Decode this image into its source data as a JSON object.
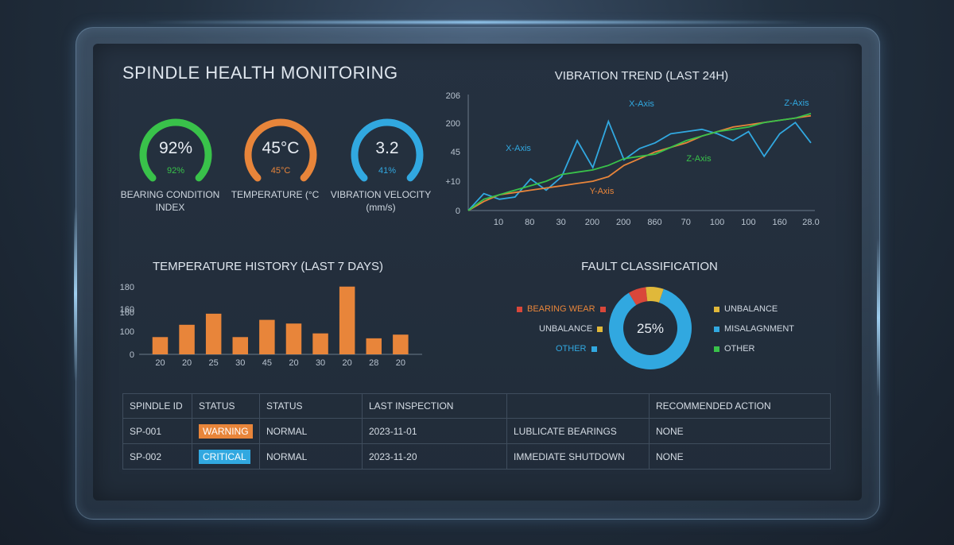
{
  "title": "SPINDLE HEALTH MONITORING",
  "colors": {
    "green": "#39c24a",
    "orange": "#e8853a",
    "blue": "#31a8e0",
    "red": "#d9473a",
    "yellow": "#e0b83a"
  },
  "gauges": [
    {
      "value": "92%",
      "sub": "92%",
      "label": "BEARING CONDITION INDEX",
      "color": "#39c24a",
      "sub_color": "#39c24a",
      "level": 0.92
    },
    {
      "value": "45°C",
      "sub": "45°C",
      "label": "TEMPERATURE (°C",
      "color": "#e8853a",
      "sub_color": "#e8853a",
      "level": 0.45
    },
    {
      "value": "3.2",
      "sub": "41%",
      "label": "VIBRATION VELOCITY (mm/s)",
      "color": "#31a8e0",
      "sub_color": "#31a8e0",
      "level": 0.41
    }
  ],
  "vibration": {
    "title": "VIBRATION TREND (LAST 24H)",
    "y_ticks": [
      "206",
      "200",
      "45",
      "+10",
      "0"
    ],
    "x_ticks": [
      "10",
      "80",
      "30",
      "200",
      "200",
      "860",
      "70",
      "100",
      "100",
      "160",
      "28.0"
    ],
    "annotations": [
      "X-Axis",
      "X-Axis",
      "Z-Axis",
      "Z-Axis",
      "Y-Axis"
    ]
  },
  "chart_data": [
    {
      "type": "line",
      "title": "VIBRATION TREND (LAST 24H)",
      "x": [
        0,
        1,
        2,
        3,
        4,
        5,
        6,
        7,
        8,
        9,
        10,
        11,
        12,
        13,
        14,
        15,
        16,
        17,
        18,
        19,
        20,
        21,
        22
      ],
      "series": [
        {
          "name": "X-Axis",
          "color": "#31a8e0",
          "values": [
            0,
            15,
            10,
            12,
            28,
            18,
            30,
            62,
            38,
            79,
            45,
            55,
            60,
            68,
            70,
            72,
            68,
            62,
            70,
            48,
            68,
            78,
            60
          ]
        },
        {
          "name": "Y-Axis",
          "color": "#e8853a",
          "values": [
            0,
            8,
            14,
            16,
            18,
            20,
            22,
            24,
            26,
            30,
            40,
            46,
            52,
            56,
            60,
            66,
            70,
            74,
            76,
            78,
            80,
            82,
            84
          ]
        },
        {
          "name": "Z-Axis",
          "color": "#39c24a",
          "values": [
            0,
            10,
            14,
            18,
            22,
            26,
            32,
            34,
            36,
            40,
            46,
            48,
            50,
            56,
            62,
            66,
            70,
            72,
            74,
            78,
            80,
            82,
            86
          ]
        }
      ],
      "ylim": [
        0,
        100
      ]
    },
    {
      "type": "bar",
      "title": "TEMPERATURE HISTORY (LAST 7 DAYS)",
      "categories": [
        "20",
        "20",
        "25",
        "30",
        "45",
        "20",
        "30",
        "20",
        "28",
        "20"
      ],
      "values": [
        70,
        120,
        165,
        70,
        140,
        125,
        85,
        275,
        65,
        80
      ],
      "y_ticks": [
        "180",
        "160",
        "160",
        "100",
        "0"
      ],
      "ylim": [
        0,
        300
      ]
    },
    {
      "type": "pie",
      "title": "FAULT CLASSIFICATION",
      "center_label": "25%",
      "slices": [
        {
          "label": "BEARING WEAR",
          "value": 7,
          "color": "#d9473a"
        },
        {
          "label": "UNBALANCE",
          "value": 7,
          "color": "#e0b83a"
        },
        {
          "label": "OTHER",
          "value": 86,
          "color": "#31a8e0"
        }
      ],
      "legend_left": [
        {
          "label": "BEARING WEAR",
          "color": "#d9473a",
          "text_color": "#e8853a"
        },
        {
          "label": "UNBALANCE",
          "color": "#e0b83a",
          "text_color": "#cfd7e0"
        },
        {
          "label": "OTHER",
          "color": "#31a8e0",
          "text_color": "#31a8e0"
        }
      ],
      "legend_right": [
        {
          "label": "UNBALANCE",
          "color": "#e0b83a"
        },
        {
          "label": "MISALAGNMENT",
          "color": "#31a8e0"
        },
        {
          "label": "OTHER",
          "color": "#39c24a"
        }
      ]
    }
  ],
  "table": {
    "headers": [
      "SPINDLE ID",
      "STATUS",
      "STATUS",
      "LAST INSPECTION",
      "",
      "RECOMMENDED ACTION"
    ],
    "rows": [
      {
        "id": "SP-001",
        "badge": "WARNING",
        "badge_color": "#e8853a",
        "status": "NORMAL",
        "date": "2023-11-01",
        "action": "LUBLICATE BEARINGS",
        "rec": "NONE"
      },
      {
        "id": "SP-002",
        "badge": "CRITICAL",
        "badge_color": "#31a8e0",
        "status": "NORMAL",
        "date": "2023-11-20",
        "action": "IMMEDIATE SHUTDOWN",
        "rec": "NONE"
      }
    ]
  }
}
